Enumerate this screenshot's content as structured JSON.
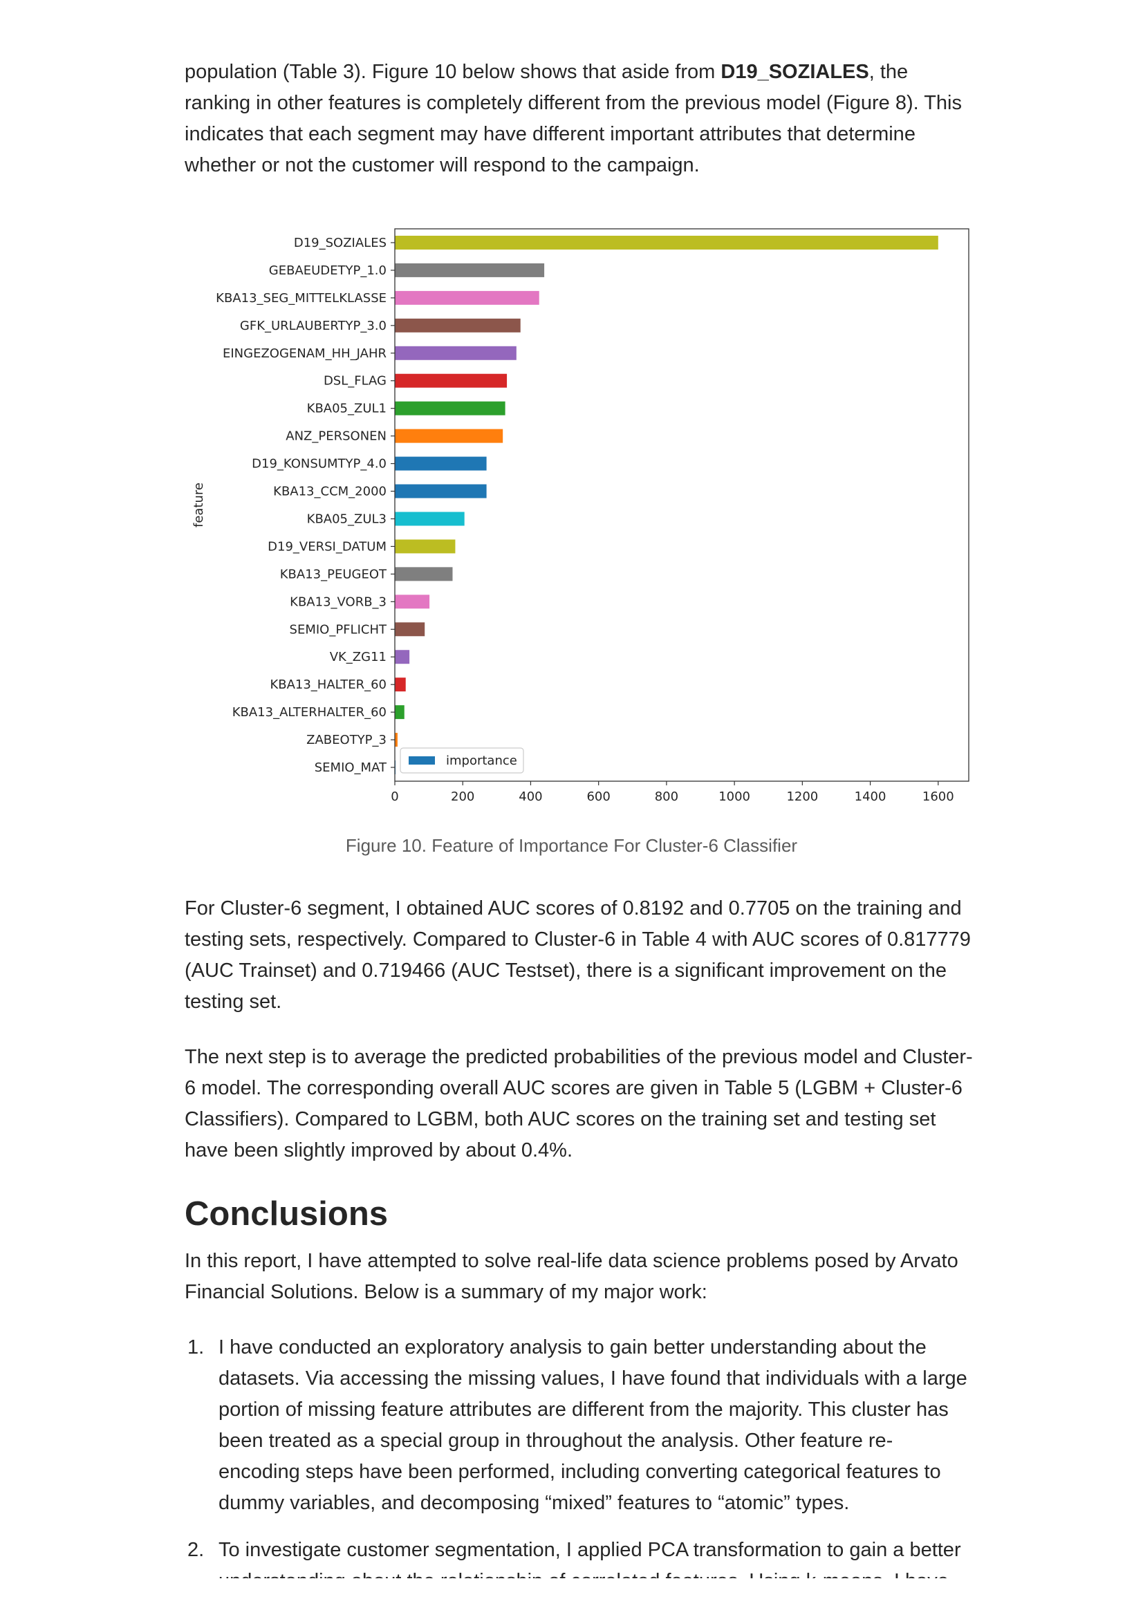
{
  "paragraphs": {
    "p1_before": "population (Table 3). Figure 10 below shows that aside from ",
    "p1_bold": "D19_SOZIALES",
    "p1_after": ", the ranking in other features is completely different from the previous model (Figure 8). This indicates that each segment may have different important attributes that determine whether or not the customer will respond to the campaign.",
    "p2": "For Cluster-6 segment, I obtained AUC scores of 0.8192 and 0.7705 on the training and testing sets, respectively. Compared to Cluster-6 in Table 4 with AUC scores of 0.817779 (AUC Trainset) and 0.719466 (AUC Testset), there is a significant improvement on the testing set.",
    "p3": "The next step is to average the predicted probabilities of the previous model and Cluster-6 model. The corresponding overall AUC scores are given in Table 5 (LGBM + Cluster-6 Classifiers). Compared to LGBM, both AUC scores on the training set and testing set have been slightly improved by about 0.4%.",
    "p4": "In this report, I have attempted to solve real-life data science problems posed by Arvato Financial Solutions. Below is a summary of my major work:"
  },
  "figure_caption": "Figure 10. Feature of Importance For Cluster-6 Classifier",
  "conclusions_heading": "Conclusions",
  "conclusion_items": [
    {
      "num": "1.",
      "text": "I have conducted an exploratory analysis to gain better understanding about the datasets. Via accessing the missing values, I have found that individuals with a large portion of missing feature attributes are different from the majority. This cluster has been treated as a special group in throughout the analysis. Other feature re-encoding steps have been performed, including converting categorical features to dummy variables, and decomposing “mixed” features to “atomic” types."
    },
    {
      "num": "2.",
      "text": "To investigate customer segmentation, I applied PCA transformation to gain a better understanding about the relationship of correlated features. Using k-means, I have"
    }
  ],
  "chart_data": {
    "type": "bar",
    "orientation": "horizontal",
    "categories": [
      "D19_SOZIALES",
      "GEBAEUDETYP_1.0",
      "KBA13_SEG_MITTELKLASSE",
      "GFK_URLAUBERTYP_3.0",
      "EINGEZOGENAM_HH_JAHR",
      "DSL_FLAG",
      "KBA05_ZUL1",
      "ANZ_PERSONEN",
      "D19_KONSUMTYP_4.0",
      "KBA13_CCM_2000",
      "KBA05_ZUL3",
      "D19_VERSI_DATUM",
      "KBA13_PEUGEOT",
      "KBA13_VORB_3",
      "SEMIO_PFLICHT",
      "VK_ZG11",
      "KBA13_HALTER_60",
      "KBA13_ALTERHALTER_60",
      "ZABEOTYP_3",
      "SEMIO_MAT"
    ],
    "series": [
      {
        "name": "importance",
        "values": [
          1600,
          440,
          425,
          370,
          358,
          330,
          325,
          318,
          270,
          270,
          205,
          178,
          170,
          102,
          88,
          43,
          32,
          28,
          8,
          2
        ]
      }
    ],
    "bar_colors": [
      "#bcbd22",
      "#7f7f7f",
      "#e377c2",
      "#8c564b",
      "#9467bd",
      "#d62728",
      "#2ca02c",
      "#ff7f0e",
      "#1f77b4",
      "#1f77b4",
      "#17becf",
      "#bcbd22",
      "#7f7f7f",
      "#e377c2",
      "#8c564b",
      "#9467bd",
      "#d62728",
      "#2ca02c",
      "#ff7f0e",
      "#1f77b4"
    ],
    "ylabel": "feature",
    "xlabel": "",
    "xlim": [
      0,
      1690
    ],
    "xticks": [
      0,
      200,
      400,
      600,
      800,
      1000,
      1200,
      1400,
      1600
    ],
    "legend": {
      "label": "importance",
      "placement": "lower-left",
      "color": "#1f77b4"
    },
    "grid": false
  }
}
